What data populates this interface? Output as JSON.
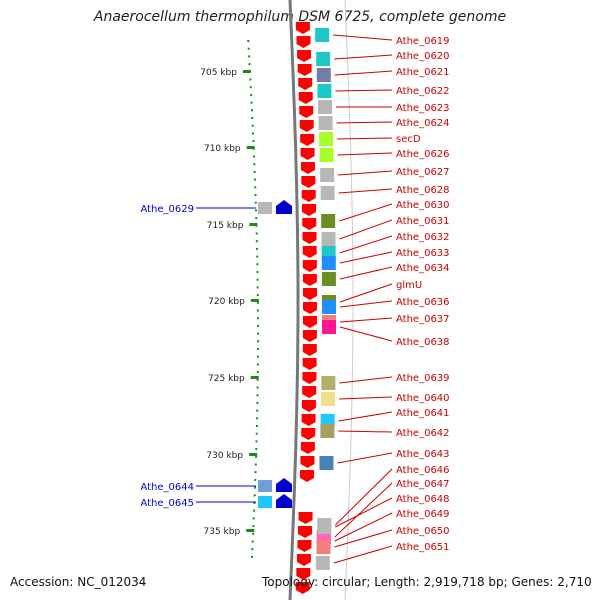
{
  "title": "Anaerocellum thermophilum DSM 6725, complete genome",
  "accession": "Accession: NC_012034",
  "topology": "Topology: circular; Length: 2,919,718 bp; Genes: 2,710",
  "colors": {
    "strand_arrow": "#ff0000",
    "label_red": "#cc0000",
    "label_blue": "#0000cc",
    "tick_green": "#1a8a1a",
    "axis_gray": "#888888"
  },
  "scale_ticks": [
    "705 kbp",
    "710 kbp",
    "715 kbp",
    "720 kbp",
    "725 kbp",
    "730 kbp",
    "735 kbp"
  ],
  "right_genes": [
    {
      "label": "Athe_0619",
      "color": "#1ec8c8"
    },
    {
      "label": "Athe_0620",
      "color": "#1ec8c8"
    },
    {
      "label": "Athe_0621",
      "color": "#6f7fa8"
    },
    {
      "label": "Athe_0622",
      "color": "#1ec8c8"
    },
    {
      "label": "Athe_0623",
      "color": "#b7b7b7"
    },
    {
      "label": "Athe_0624",
      "color": "#b7b7b7"
    },
    {
      "label": "secD",
      "color": "#a6ff2a"
    },
    {
      "label": "Athe_0626",
      "color": "#a6ff2a"
    },
    {
      "label": "Athe_0627",
      "color": "#b7b7b7"
    },
    {
      "label": "Athe_0628",
      "color": "#b7b7b7"
    },
    {
      "label": "Athe_0630",
      "color": "#6b8e23"
    },
    {
      "label": "Athe_0631",
      "color": "#b7b7b7"
    },
    {
      "label": "Athe_0632",
      "color": "#1ec8c8"
    },
    {
      "label": "Athe_0633",
      "color": "#1e90ff"
    },
    {
      "label": "Athe_0634",
      "color": "#6b8e23"
    },
    {
      "label": "glmU",
      "color": "#6b8e23"
    },
    {
      "label": "Athe_0636",
      "color": "#1e90ff"
    },
    {
      "label": "Athe_0637",
      "color": "#f08080"
    },
    {
      "label": "Athe_0638",
      "color": "#ff1493"
    },
    {
      "label": "Athe_0639",
      "color": "#b5ad6e"
    },
    {
      "label": "Athe_0640",
      "color": "#f0e08c"
    },
    {
      "label": "Athe_0641",
      "color": "#1ec8ff"
    },
    {
      "label": "Athe_0642",
      "color": "#a8a060"
    },
    {
      "label": "Athe_0643",
      "color": "#4682b4"
    },
    {
      "label": "Athe_0646",
      "color": "#b7b7b7"
    },
    {
      "label": "Athe_0647",
      "color": "#ff1493"
    },
    {
      "label": "Athe_0648",
      "color": "#b7b7b7"
    },
    {
      "label": "Athe_0649",
      "color": "#ff69b4"
    },
    {
      "label": "Athe_0650",
      "color": "#f08080"
    },
    {
      "label": "Athe_0651",
      "color": "#b7b7b7"
    }
  ],
  "left_genes": [
    {
      "label": "Athe_0629",
      "color": "#b7b7b7"
    },
    {
      "label": "Athe_0644",
      "color": "#6f9fd8"
    },
    {
      "label": "Athe_0645",
      "color": "#1ec8ff"
    }
  ]
}
